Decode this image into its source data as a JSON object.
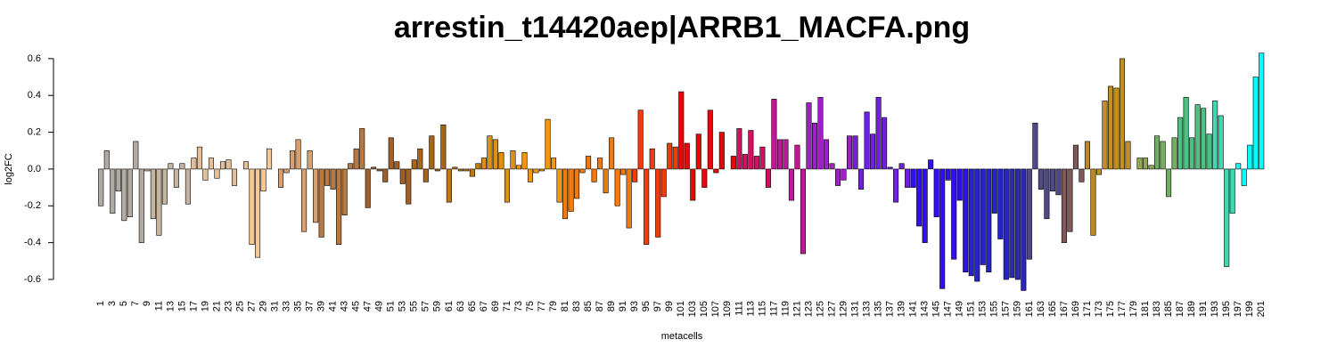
{
  "chart_data": {
    "type": "bar",
    "title": "arrestin_t14420aep|ARRB1_MACFA.png",
    "x_label": "metacells",
    "y_label": "log2FC",
    "ylim": [
      -0.66,
      0.64
    ],
    "yticks": [
      -0.6,
      -0.4,
      -0.2,
      {
        "value": 0,
        "label": "0.0"
      },
      0.2,
      0.4,
      0.6
    ],
    "categories": [
      "1",
      null,
      "3",
      null,
      "5",
      null,
      "7",
      null,
      "9",
      null,
      "11",
      null,
      "13",
      null,
      "15",
      null,
      "17",
      null,
      "19",
      null,
      "21",
      null,
      "23",
      null,
      "25",
      null,
      "27",
      null,
      "29",
      null,
      "31",
      null,
      "33",
      null,
      "35",
      null,
      "37",
      null,
      "39",
      null,
      "41",
      null,
      "43",
      null,
      "45",
      null,
      "47",
      null,
      "49",
      null,
      "51",
      null,
      "53",
      null,
      "55",
      null,
      "57",
      null,
      "59",
      null,
      "61",
      null,
      "63",
      null,
      "65",
      null,
      "67",
      null,
      "69",
      null,
      "71",
      null,
      "73",
      null,
      "75",
      null,
      "77",
      null,
      "79",
      null,
      "81",
      null,
      "83",
      null,
      "85",
      null,
      "87",
      null,
      "89",
      null,
      "91",
      null,
      "93",
      null,
      "95",
      null,
      "97",
      null,
      "99",
      null,
      "101",
      null,
      "103",
      null,
      "105",
      null,
      "107",
      null,
      "109",
      null,
      "111",
      null,
      "113",
      null,
      "115",
      null,
      "117",
      null,
      "119",
      null,
      "121",
      null,
      "123",
      null,
      "125",
      null,
      "127",
      null,
      "129",
      null,
      "131",
      null,
      "133",
      null,
      "135",
      null,
      "137",
      null,
      "139",
      null,
      "141",
      null,
      "143",
      null,
      "145",
      null,
      "147",
      null,
      "149",
      null,
      "151",
      null,
      "153",
      null,
      "155",
      null,
      "157",
      null,
      "159",
      null,
      "161",
      null,
      "163",
      null,
      "165",
      null,
      "167",
      null,
      "169",
      null,
      "171",
      null,
      "173",
      null,
      "175",
      null,
      "177",
      null,
      "179",
      null,
      "181",
      null,
      "183",
      null,
      "185",
      null,
      "187",
      null,
      "189",
      null,
      "191",
      null,
      "193",
      null,
      "195",
      null,
      "197",
      null,
      "199",
      null,
      "201"
    ],
    "values": [
      -0.2,
      0.1,
      -0.24,
      -0.12,
      -0.28,
      -0.26,
      0.15,
      -0.4,
      -0.01,
      -0.27,
      -0.36,
      -0.19,
      0.03,
      -0.1,
      0.03,
      -0.19,
      0.06,
      0.12,
      -0.06,
      0.06,
      -0.05,
      0.04,
      0.05,
      -0.09,
      0.0,
      0.04,
      -0.41,
      -0.48,
      -0.12,
      0.11,
      0.0,
      -0.1,
      -0.02,
      0.1,
      0.16,
      -0.34,
      0.1,
      -0.29,
      -0.37,
      -0.09,
      -0.11,
      -0.41,
      -0.25,
      0.03,
      0.11,
      0.22,
      -0.21,
      0.01,
      -0.01,
      -0.07,
      0.17,
      0.04,
      -0.08,
      -0.19,
      0.05,
      0.11,
      -0.07,
      0.18,
      -0.01,
      0.24,
      -0.18,
      0.01,
      -0.01,
      -0.01,
      -0.04,
      0.03,
      0.06,
      0.18,
      0.16,
      0.09,
      -0.18,
      0.1,
      0.02,
      0.09,
      -0.07,
      -0.02,
      -0.01,
      0.27,
      0.06,
      -0.18,
      -0.27,
      -0.23,
      -0.16,
      -0.02,
      0.07,
      -0.07,
      0.06,
      -0.13,
      0.17,
      -0.2,
      -0.03,
      -0.32,
      -0.07,
      0.32,
      -0.41,
      0.11,
      -0.37,
      -0.15,
      0.14,
      0.12,
      0.42,
      0.14,
      -0.17,
      0.19,
      -0.1,
      0.32,
      -0.02,
      0.2,
      0.0,
      0.07,
      0.22,
      0.08,
      0.21,
      0.07,
      0.12,
      -0.1,
      0.38,
      0.16,
      0.16,
      -0.17,
      0.13,
      -0.46,
      0.36,
      0.25,
      0.39,
      0.16,
      0.03,
      -0.09,
      -0.06,
      0.18,
      0.18,
      -0.11,
      0.31,
      0.19,
      0.39,
      0.28,
      0.01,
      -0.18,
      0.03,
      -0.1,
      -0.1,
      -0.31,
      -0.4,
      0.05,
      -0.26,
      -0.65,
      -0.06,
      -0.49,
      -0.17,
      -0.56,
      -0.58,
      -0.61,
      -0.52,
      -0.56,
      -0.24,
      -0.38,
      -0.6,
      -0.59,
      -0.6,
      -0.66,
      -0.49,
      0.25,
      -0.11,
      -0.27,
      -0.12,
      -0.14,
      -0.4,
      -0.34,
      0.13,
      -0.07,
      0.15,
      -0.36,
      -0.03,
      0.37,
      0.45,
      0.44,
      0.6,
      0.15,
      0.0,
      0.06,
      0.06,
      0.02,
      0.18,
      0.15,
      -0.15,
      0.17,
      0.28,
      0.39,
      0.17,
      0.35,
      0.33,
      0.19,
      0.37,
      0.29,
      -0.53,
      -0.24,
      0.03,
      -0.09,
      0.13,
      0.5,
      0.63
    ],
    "colors": [
      "#b0aaa4",
      "#b0aaa4",
      "#b0aaa4",
      "#b0aaa4",
      "#b4aca2",
      "#b4aca2",
      "#b4aca2",
      "#b4aca2",
      "#c4b4a0",
      "#c4b4a0",
      "#c4b4a0",
      "#c4b4a0",
      "#c4b4a0",
      "#c4b4a0",
      "#c4b4a0",
      "#c4b4a0",
      "#e4c09a",
      "#e4c09a",
      "#e4c09a",
      "#e4c09a",
      "#e4c09a",
      "#e4c09a",
      "#e4c09a",
      "#e4c09a",
      "#e4c09a",
      "#e4c09a",
      "#f5c894",
      "#f5c894",
      "#f5c894",
      "#f5c894",
      "#d8a070",
      "#d8a070",
      "#d8a070",
      "#d8a070",
      "#d8a070",
      "#d8a070",
      "#d8a070",
      "#d8a070",
      "#b87840",
      "#b87840",
      "#b87840",
      "#b87840",
      "#b87840",
      "#b87840",
      "#b87840",
      "#b87840",
      "#a0602a",
      "#a0602a",
      "#a0602a",
      "#a0602a",
      "#a0602a",
      "#a0602a",
      "#a0602a",
      "#a0602a",
      "#a86418",
      "#a86418",
      "#a86418",
      "#a86418",
      "#a86418",
      "#a86418",
      "#c07810",
      "#c07810",
      "#c07810",
      "#c07810",
      "#c07810",
      "#c07810",
      "#e09010",
      "#e09010",
      "#e09010",
      "#e09010",
      "#e09010",
      "#e09010",
      "#f09810",
      "#f09810",
      "#f09810",
      "#f09810",
      "#f09810",
      "#f09810",
      "#f09810",
      "#f09810",
      "#f07a10",
      "#f07a10",
      "#f07a10",
      "#f07a10",
      "#f07a10",
      "#f07a10",
      "#f07a10",
      "#f07a10",
      "#f07a10",
      "#f07a10",
      "#f07a10",
      "#f07a10",
      "#f03c0a",
      "#f03c0a",
      "#f03c0a",
      "#f03c0a",
      "#f03c0a",
      "#f03c0a",
      "#f03c0a",
      "#f03c0a",
      "#e80808",
      "#e80808",
      "#e80808",
      "#e80808",
      "#e80808",
      "#e80808",
      "#e80808",
      "#e80808",
      "#e80808",
      "#e80808",
      "#d01060",
      "#d01060",
      "#d01060",
      "#d01060",
      "#d01060",
      "#d01060",
      "#c01898",
      "#c01898",
      "#c01898",
      "#c01898",
      "#c01898",
      "#c01898",
      "#a020c8",
      "#a020c8",
      "#a020c8",
      "#a020c8",
      "#a020c8",
      "#a020c8",
      "#a020c8",
      "#a020c8",
      "#7020e0",
      "#7020e0",
      "#7020e0",
      "#7020e0",
      "#7020e0",
      "#7020e0",
      "#7020e0",
      "#7020e0",
      "#7020e0",
      "#7020e0",
      "#3010f0",
      "#3010f0",
      "#3010f0",
      "#3010f0",
      "#3010f0",
      "#3010f0",
      "#3010f0",
      "#3010f0",
      "#3010f0",
      "#3010f0",
      "#2424c8",
      "#2424c8",
      "#2424c8",
      "#2424c8",
      "#2424c8",
      "#2424c8",
      "#2424c8",
      "#2a2ab0",
      "#2a2ab0",
      "#2a2ab0",
      "#504888",
      "#504888",
      "#504888",
      "#504888",
      "#504888",
      "#504888",
      "#805858",
      "#805858",
      "#805858",
      "#805858",
      "#b88830",
      "#b88830",
      "#c09020",
      "#c09020",
      "#c09020",
      "#c09020",
      "#c09020",
      "#c09020",
      "#90a858",
      "#90a858",
      "#90a858",
      "#90a858",
      "#70b060",
      "#70b060",
      "#70b060",
      "#70b060",
      "#50c080",
      "#50c080",
      "#50c080",
      "#50c080",
      "#50c080",
      "#50c080",
      "#40d8b0",
      "#40d8b0",
      "#40d8b0",
      "#40d8b0",
      "#20f0f0",
      "#00ffff",
      "#00ffff",
      "#00ffff",
      "#00ffff"
    ]
  }
}
